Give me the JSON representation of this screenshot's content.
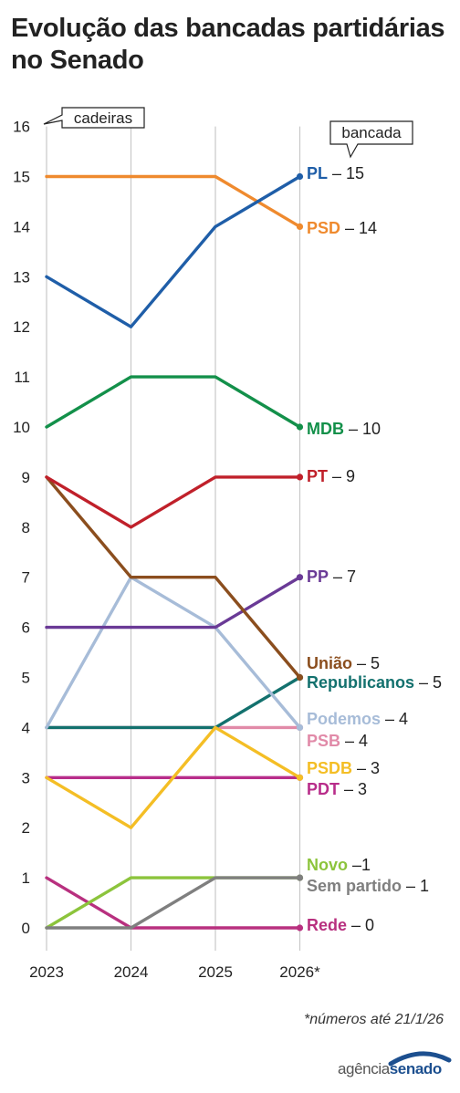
{
  "title": "Evolução das bancadas partidárias no Senado",
  "footnote": "*números até 21/1/26",
  "logo": {
    "part1": "agência",
    "part2": "senado"
  },
  "colors": {
    "grid": "#c8c8c8",
    "axis": "#222222",
    "brand": "#1c4f8f"
  },
  "chart_data": {
    "type": "line",
    "x": [
      "2023",
      "2024",
      "2025",
      "2026*"
    ],
    "ylim": [
      0,
      16
    ],
    "yticks": [
      0,
      1,
      2,
      3,
      4,
      5,
      6,
      7,
      8,
      9,
      10,
      11,
      12,
      13,
      14,
      15,
      16
    ],
    "ylabel": "cadeiras",
    "series_header": "bancada",
    "grid": true,
    "series": [
      {
        "name": "PL",
        "values": [
          13,
          12,
          14,
          15
        ],
        "color": "#1f5ea8",
        "label_value": "– 15"
      },
      {
        "name": "PSD",
        "values": [
          15,
          15,
          15,
          14
        ],
        "color": "#ef8a2e",
        "label_value": "– 14"
      },
      {
        "name": "MDB",
        "values": [
          10,
          11,
          11,
          10
        ],
        "color": "#13904a",
        "label_value": "– 10"
      },
      {
        "name": "PT",
        "values": [
          9,
          8,
          9,
          9
        ],
        "color": "#c0202a",
        "label_value": "– 9"
      },
      {
        "name": "PP",
        "values": [
          6,
          6,
          6,
          7
        ],
        "color": "#6a3a96",
        "label_value": "– 7"
      },
      {
        "name": "União",
        "values": [
          9,
          7,
          7,
          5
        ],
        "color": "#8b4e1e",
        "label_value": "– 5"
      },
      {
        "name": "Republicanos",
        "values": [
          4,
          4,
          4,
          5
        ],
        "color": "#13716e",
        "label_value": "– 5"
      },
      {
        "name": "Podemos",
        "values": [
          4,
          7,
          6,
          4
        ],
        "color": "#a7bcd8",
        "label_value": "– 4"
      },
      {
        "name": "PSB",
        "values": [
          4,
          4,
          4,
          4
        ],
        "color": "#e18aa8",
        "label_value": "– 4"
      },
      {
        "name": "PSDB",
        "values": [
          3,
          2,
          4,
          3
        ],
        "color": "#f4be25",
        "label_value": "– 3"
      },
      {
        "name": "PDT",
        "values": [
          3,
          3,
          3,
          3
        ],
        "color": "#b82d8a",
        "label_value": "– 3"
      },
      {
        "name": "Novo",
        "values": [
          0,
          1,
          1,
          1
        ],
        "color": "#8cc43c",
        "label_value": "–1"
      },
      {
        "name": "Sem partido",
        "values": [
          0,
          0,
          1,
          1
        ],
        "color": "#7f7f7f",
        "label_value": "– 1"
      },
      {
        "name": "Rede",
        "values": [
          1,
          0,
          0,
          0
        ],
        "color": "#b8307f",
        "label_value": "– 0"
      }
    ]
  }
}
